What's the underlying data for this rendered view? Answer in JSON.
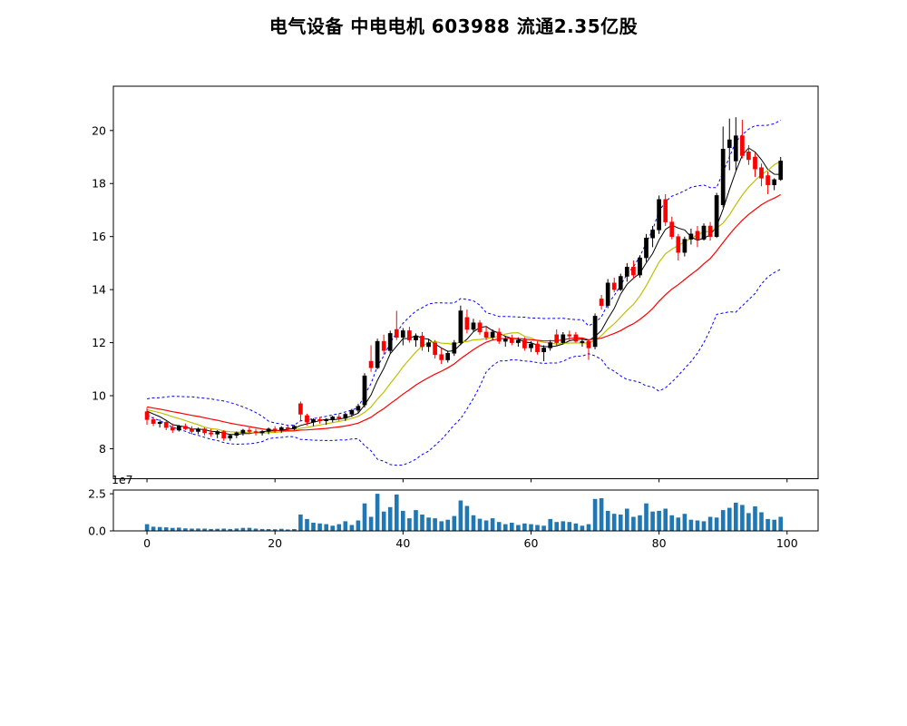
{
  "title": "电气设备  中电电机  603988  流通2.35亿股",
  "chart_data": {
    "type": "candlestick+volume",
    "panels": [
      "price",
      "volume"
    ],
    "x_ticks": [
      0,
      20,
      40,
      60,
      80,
      100
    ],
    "price_ticks": [
      8,
      10,
      12,
      14,
      16,
      18,
      20
    ],
    "volume_ticks": [
      0,
      25000000
    ],
    "volume_tick_labels": [
      "0.0",
      "2.5"
    ],
    "volume_scale_label": "1e7",
    "xlim": [
      -5.25,
      104.85
    ],
    "price_ylim": [
      6.87,
      21.67
    ],
    "volume_ylim": [
      0,
      27500000
    ],
    "colors": {
      "up": "#000000",
      "down": "#ff0000",
      "volume": "#1f77b4",
      "boll": "#0000ff",
      "ma_fast": "#000000",
      "ma_mid": "#bfbf00",
      "ma_slow": "#ff0000",
      "axis": "#000000",
      "background": "#ffffff"
    },
    "overlays": [
      {
        "name": "MA5",
        "type": "sma",
        "window": 5,
        "color": "#000000",
        "width": 1.0
      },
      {
        "name": "MA10",
        "type": "sma",
        "window": 10,
        "color": "#bfbf00",
        "width": 1.2
      },
      {
        "name": "MA20",
        "type": "sma",
        "window": 20,
        "color": "#ff0000",
        "width": 1.2
      },
      {
        "name": "BOLL-upper",
        "type": "boll",
        "window": 20,
        "k": 2,
        "color": "#0000ff",
        "width": 1.0,
        "dash": "3,2.5"
      },
      {
        "name": "BOLL-lower",
        "type": "boll",
        "window": 20,
        "k": -2,
        "color": "#0000ff",
        "width": 1.0,
        "dash": "3,2.5"
      }
    ],
    "overlays_seed_closes": [
      9.9,
      9.85,
      9.8,
      9.76,
      9.72,
      9.68,
      9.65,
      9.62,
      9.6,
      9.58,
      9.56,
      9.55,
      9.54,
      9.53,
      9.52,
      9.51,
      9.5,
      9.5,
      9.5,
      9.5
    ],
    "ohlc": [
      [
        9.4,
        9.55,
        8.9,
        9.1
      ],
      [
        9.1,
        9.2,
        8.85,
        8.95
      ],
      [
        8.95,
        9.1,
        8.8,
        9.0
      ],
      [
        9.0,
        9.05,
        8.7,
        8.8
      ],
      [
        8.8,
        8.95,
        8.6,
        8.7
      ],
      [
        8.7,
        8.9,
        8.65,
        8.85
      ],
      [
        8.85,
        8.95,
        8.7,
        8.75
      ],
      [
        8.75,
        8.85,
        8.55,
        8.65
      ],
      [
        8.65,
        8.8,
        8.55,
        8.75
      ],
      [
        8.75,
        8.8,
        8.5,
        8.6
      ],
      [
        8.6,
        8.75,
        8.45,
        8.55
      ],
      [
        8.55,
        8.7,
        8.4,
        8.65
      ],
      [
        8.65,
        8.7,
        8.3,
        8.4
      ],
      [
        8.4,
        8.55,
        8.3,
        8.5
      ],
      [
        8.5,
        8.65,
        8.4,
        8.6
      ],
      [
        8.6,
        8.75,
        8.5,
        8.7
      ],
      [
        8.7,
        8.8,
        8.55,
        8.65
      ],
      [
        8.65,
        8.75,
        8.5,
        8.6
      ],
      [
        8.6,
        8.7,
        8.5,
        8.65
      ],
      [
        8.65,
        8.8,
        8.55,
        8.75
      ],
      [
        8.75,
        8.85,
        8.6,
        8.7
      ],
      [
        8.7,
        8.85,
        8.6,
        8.8
      ],
      [
        8.8,
        8.9,
        8.65,
        8.75
      ],
      [
        8.75,
        8.9,
        8.7,
        8.85
      ],
      [
        9.7,
        9.78,
        9.05,
        9.3
      ],
      [
        9.25,
        9.32,
        8.88,
        9.0
      ],
      [
        9.0,
        9.15,
        8.85,
        9.1
      ],
      [
        9.1,
        9.2,
        8.95,
        9.05
      ],
      [
        9.05,
        9.15,
        8.9,
        9.1
      ],
      [
        9.1,
        9.25,
        9.0,
        9.2
      ],
      [
        9.2,
        9.3,
        9.05,
        9.15
      ],
      [
        9.15,
        9.35,
        9.05,
        9.3
      ],
      [
        9.3,
        9.5,
        9.2,
        9.45
      ],
      [
        9.45,
        9.7,
        9.35,
        9.6
      ],
      [
        9.65,
        10.85,
        9.55,
        10.75
      ],
      [
        11.3,
        11.9,
        10.9,
        11.05
      ],
      [
        11.05,
        12.15,
        11.0,
        12.05
      ],
      [
        12.05,
        12.3,
        11.55,
        11.7
      ],
      [
        11.7,
        12.45,
        11.6,
        12.35
      ],
      [
        12.5,
        13.2,
        12.1,
        12.2
      ],
      [
        12.2,
        12.55,
        11.9,
        12.45
      ],
      [
        12.45,
        12.6,
        12.0,
        12.1
      ],
      [
        12.1,
        12.35,
        11.85,
        12.25
      ],
      [
        12.25,
        12.4,
        11.7,
        11.85
      ],
      [
        11.85,
        12.15,
        11.65,
        12.0
      ],
      [
        12.0,
        12.1,
        11.4,
        11.55
      ],
      [
        11.55,
        11.8,
        11.2,
        11.35
      ],
      [
        11.35,
        11.7,
        11.25,
        11.6
      ],
      [
        11.6,
        12.1,
        11.5,
        12.0
      ],
      [
        12.0,
        13.4,
        11.9,
        13.2
      ],
      [
        12.95,
        13.25,
        12.35,
        12.5
      ],
      [
        12.5,
        12.9,
        12.4,
        12.75
      ],
      [
        12.75,
        12.85,
        12.3,
        12.4
      ],
      [
        12.4,
        12.6,
        12.1,
        12.2
      ],
      [
        12.2,
        12.5,
        12.1,
        12.4
      ],
      [
        12.4,
        12.55,
        11.95,
        12.05
      ],
      [
        12.05,
        12.25,
        11.85,
        12.15
      ],
      [
        12.15,
        12.3,
        11.9,
        12.0
      ],
      [
        12.0,
        12.2,
        11.85,
        12.1
      ],
      [
        12.1,
        12.2,
        11.7,
        11.8
      ],
      [
        11.8,
        12.05,
        11.65,
        11.95
      ],
      [
        11.95,
        12.05,
        11.55,
        11.65
      ],
      [
        11.65,
        11.9,
        11.3,
        11.8
      ],
      [
        11.8,
        12.1,
        11.7,
        12.0
      ],
      [
        12.3,
        12.5,
        11.9,
        12.0
      ],
      [
        12.0,
        12.4,
        11.95,
        12.3
      ],
      [
        12.3,
        12.45,
        12.1,
        12.25
      ],
      [
        12.3,
        12.4,
        12.0,
        12.05
      ],
      [
        12.0,
        12.15,
        11.85,
        12.05
      ],
      [
        12.05,
        12.1,
        11.35,
        11.8
      ],
      [
        11.85,
        13.1,
        11.75,
        13.0
      ],
      [
        13.65,
        13.8,
        13.25,
        13.4
      ],
      [
        13.4,
        14.4,
        13.3,
        14.25
      ],
      [
        14.25,
        14.45,
        13.9,
        14.0
      ],
      [
        14.0,
        14.6,
        13.95,
        14.5
      ],
      [
        14.5,
        15.0,
        14.3,
        14.85
      ],
      [
        14.85,
        15.1,
        14.4,
        14.55
      ],
      [
        14.55,
        15.3,
        14.45,
        15.2
      ],
      [
        15.2,
        16.1,
        15.05,
        15.95
      ],
      [
        15.95,
        16.4,
        15.6,
        16.25
      ],
      [
        16.25,
        17.55,
        16.1,
        17.4
      ],
      [
        17.4,
        17.6,
        16.4,
        16.55
      ],
      [
        16.55,
        16.75,
        15.9,
        16.0
      ],
      [
        16.0,
        16.1,
        15.1,
        15.4
      ],
      [
        15.4,
        16.0,
        15.25,
        15.9
      ],
      [
        15.9,
        16.3,
        15.7,
        16.1
      ],
      [
        16.2,
        16.4,
        15.6,
        15.9
      ],
      [
        15.9,
        16.5,
        15.85,
        16.4
      ],
      [
        16.4,
        16.55,
        15.85,
        16.0
      ],
      [
        16.0,
        17.65,
        15.95,
        17.55
      ],
      [
        17.2,
        20.15,
        17.1,
        19.3
      ],
      [
        19.35,
        20.45,
        18.5,
        19.65
      ],
      [
        18.85,
        20.5,
        18.5,
        19.8
      ],
      [
        19.8,
        20.4,
        18.95,
        19.05
      ],
      [
        19.2,
        19.45,
        18.7,
        18.9
      ],
      [
        19.0,
        19.15,
        18.25,
        18.55
      ],
      [
        18.6,
        18.75,
        17.9,
        18.2
      ],
      [
        18.3,
        18.45,
        17.6,
        17.95
      ],
      [
        17.95,
        18.2,
        17.75,
        18.15
      ],
      [
        18.15,
        19.0,
        18.1,
        18.85
      ]
    ],
    "volume_1e7": [
      0.45,
      0.28,
      0.26,
      0.24,
      0.2,
      0.22,
      0.17,
      0.15,
      0.16,
      0.15,
      0.13,
      0.14,
      0.15,
      0.13,
      0.16,
      0.2,
      0.21,
      0.15,
      0.13,
      0.12,
      0.11,
      0.14,
      0.1,
      0.12,
      1.1,
      0.8,
      0.55,
      0.5,
      0.45,
      0.35,
      0.45,
      0.65,
      0.4,
      0.7,
      1.85,
      0.95,
      2.5,
      1.3,
      1.6,
      2.45,
      1.35,
      0.85,
      1.4,
      1.1,
      0.9,
      0.85,
      0.65,
      0.75,
      1.0,
      2.05,
      1.68,
      1.05,
      0.82,
      0.7,
      0.85,
      0.6,
      0.45,
      0.55,
      0.4,
      0.5,
      0.45,
      0.4,
      0.35,
      0.8,
      0.6,
      0.65,
      0.6,
      0.5,
      0.35,
      0.45,
      2.15,
      2.2,
      1.35,
      1.15,
      1.1,
      1.5,
      0.95,
      1.05,
      1.85,
      1.3,
      1.35,
      1.5,
      1.05,
      0.9,
      1.15,
      0.75,
      0.7,
      0.65,
      0.95,
      0.9,
      1.4,
      1.55,
      1.9,
      1.75,
      1.2,
      1.65,
      1.25,
      0.8,
      0.75,
      0.95
    ]
  }
}
